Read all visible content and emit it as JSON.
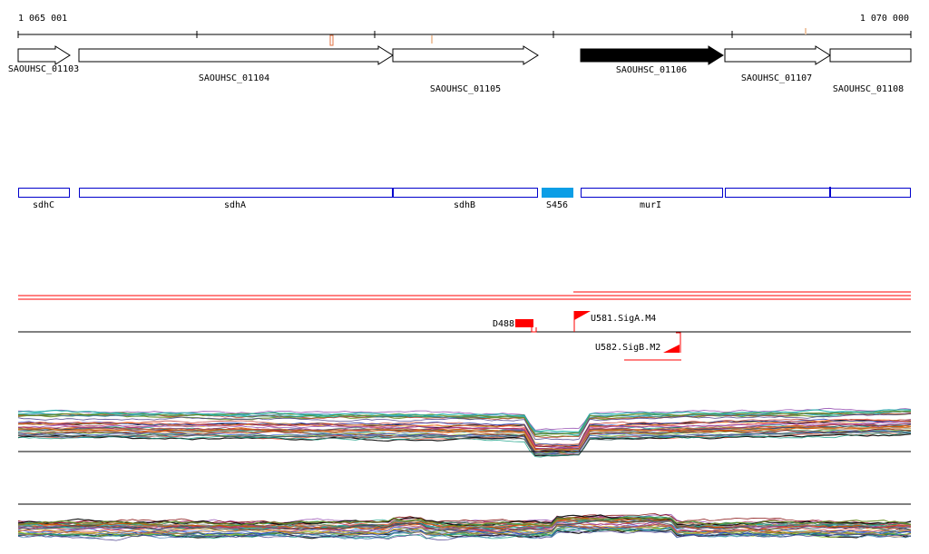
{
  "ruler": {
    "start_label": "1 065 001",
    "end_label": "1 070 000"
  },
  "genes": [
    {
      "id": "SAOUHSC_01103",
      "strand": "+",
      "fill": "#ffffff"
    },
    {
      "id": "SAOUHSC_01104",
      "strand": "+",
      "fill": "#ffffff"
    },
    {
      "id": "SAOUHSC_01105",
      "strand": "+",
      "fill": "#ffffff"
    },
    {
      "id": "SAOUHSC_01106",
      "strand": "+",
      "fill": "#000000"
    },
    {
      "id": "SAOUHSC_01107",
      "strand": "+",
      "fill": "#ffffff"
    },
    {
      "id": "SAOUHSC_01108",
      "strand": "+",
      "fill": "#ffffff"
    }
  ],
  "gene_names": [
    {
      "name": "sdhC"
    },
    {
      "name": "sdhA"
    },
    {
      "name": "sdhB"
    },
    {
      "name": "S456",
      "color": "#0c9ee6"
    },
    {
      "name": "murI"
    },
    {
      "name": ""
    },
    {
      "name": ""
    }
  ],
  "features": [
    {
      "label": "D488",
      "color": "#ff0000"
    },
    {
      "label": "U581.SigA.M4",
      "color": "#ff0000"
    },
    {
      "label": "U582.SigB.M2",
      "color": "#ff0000"
    }
  ],
  "colors": {
    "box_outline": "#0000cc",
    "feature": "#ff0000",
    "tick_marker": "#e07040"
  }
}
